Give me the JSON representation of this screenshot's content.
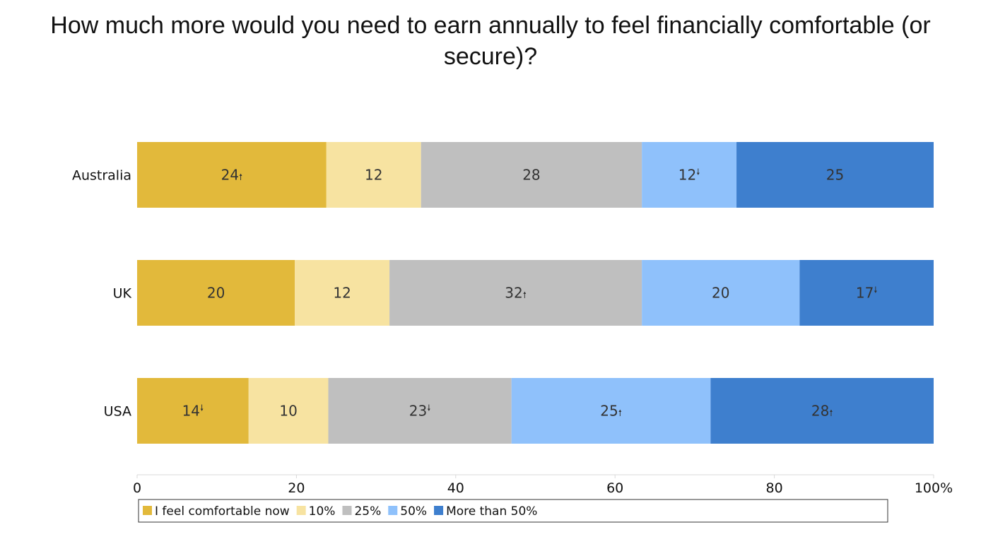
{
  "chart_data": {
    "type": "bar",
    "orientation": "horizontal",
    "stacked": true,
    "title_lines": [
      "How much more would you need to earn annually to feel financially comfortable (or",
      "secure)?"
    ],
    "categories": [
      "Australia",
      "UK",
      "USA"
    ],
    "series": [
      {
        "name": "I feel comfortable now",
        "color": "#E2B93B",
        "values": [
          24,
          20,
          14
        ],
        "labels": [
          "24",
          "20",
          "14"
        ],
        "markers": [
          "up",
          "",
          "down"
        ]
      },
      {
        "name": "10%",
        "color": "#F7E3A1",
        "values": [
          12,
          12,
          10
        ],
        "labels": [
          "12",
          "12",
          "10"
        ],
        "markers": [
          "",
          "",
          ""
        ]
      },
      {
        "name": "25%",
        "color": "#BFBFBF",
        "values": [
          28,
          32,
          23
        ],
        "labels": [
          "28",
          "32",
          "23"
        ],
        "markers": [
          "",
          "up",
          "down"
        ]
      },
      {
        "name": "50%",
        "color": "#8FC1FB",
        "values": [
          12,
          20,
          25
        ],
        "labels": [
          "12",
          "20",
          "25"
        ],
        "markers": [
          "down",
          "",
          "up"
        ]
      },
      {
        "name": "More than 50%",
        "color": "#3E7FCE",
        "values": [
          25,
          17,
          28
        ],
        "labels": [
          "25",
          "17",
          "28"
        ],
        "markers": [
          "",
          "down",
          "up"
        ]
      }
    ],
    "xlim": [
      0,
      100
    ],
    "xticks": [
      0,
      20,
      40,
      60,
      80,
      100
    ],
    "xtick_labels": [
      "0",
      "20",
      "40",
      "60",
      "80",
      "100%"
    ],
    "xlabel": "",
    "ylabel": "",
    "grid": false,
    "legend_position": "bottom",
    "marker_glyphs": {
      "up": "🠕",
      "down": "🠗"
    }
  }
}
